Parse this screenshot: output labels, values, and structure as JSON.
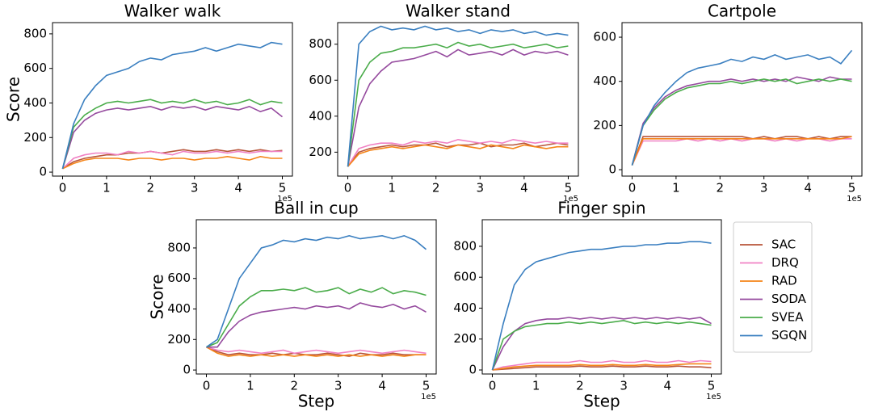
{
  "chart_data": [
    {
      "type": "line",
      "title": "Walker walk",
      "y_label": "Score",
      "x_offset_label": "1e5",
      "x": [
        0,
        0.25,
        0.5,
        0.75,
        1,
        1.25,
        1.5,
        1.75,
        2,
        2.25,
        2.5,
        2.75,
        3,
        3.25,
        3.5,
        3.75,
        4,
        4.25,
        4.5,
        4.75,
        5
      ],
      "xlim": [
        -0.23,
        5.23
      ],
      "xticks": [
        0,
        1,
        2,
        3,
        4,
        5
      ],
      "ylim": [
        -23,
        865
      ],
      "yticks": [
        0,
        200,
        400,
        600,
        800
      ],
      "series": [
        {
          "name": "SAC",
          "color": "#b8553a",
          "values": [
            20,
            60,
            80,
            90,
            100,
            100,
            110,
            110,
            120,
            110,
            120,
            130,
            120,
            120,
            130,
            120,
            130,
            120,
            130,
            120,
            125
          ]
        },
        {
          "name": "DRQ",
          "color": "#f081c4",
          "values": [
            20,
            80,
            100,
            110,
            110,
            100,
            120,
            110,
            120,
            110,
            100,
            120,
            110,
            110,
            120,
            110,
            120,
            110,
            120,
            120,
            120
          ]
        },
        {
          "name": "RAD",
          "color": "#f58518",
          "values": [
            20,
            50,
            70,
            80,
            80,
            80,
            70,
            80,
            80,
            70,
            80,
            80,
            70,
            80,
            80,
            90,
            80,
            70,
            90,
            80,
            80
          ]
        },
        {
          "name": "SODA",
          "color": "#954a9e",
          "values": [
            20,
            230,
            300,
            340,
            360,
            370,
            360,
            370,
            380,
            360,
            380,
            370,
            380,
            360,
            380,
            370,
            360,
            380,
            350,
            370,
            320
          ]
        },
        {
          "name": "SVEA",
          "color": "#4aac4a",
          "values": [
            20,
            260,
            330,
            370,
            400,
            410,
            400,
            410,
            420,
            400,
            410,
            400,
            420,
            400,
            410,
            390,
            400,
            420,
            390,
            410,
            400
          ]
        },
        {
          "name": "SGQN",
          "color": "#3a7fc0",
          "values": [
            20,
            280,
            420,
            500,
            560,
            580,
            600,
            640,
            660,
            650,
            680,
            690,
            700,
            720,
            700,
            720,
            740,
            730,
            720,
            750,
            740
          ]
        }
      ]
    },
    {
      "type": "line",
      "title": "Walker stand",
      "x_offset_label": "1e5",
      "x": [
        0,
        0.25,
        0.5,
        0.75,
        1,
        1.25,
        1.5,
        1.75,
        2,
        2.25,
        2.5,
        2.75,
        3,
        3.25,
        3.5,
        3.75,
        4,
        4.25,
        4.5,
        4.75,
        5
      ],
      "xlim": [
        -0.23,
        5.23
      ],
      "xticks": [
        0,
        1,
        2,
        3,
        4,
        5
      ],
      "ylim": [
        67,
        920
      ],
      "yticks": [
        200,
        400,
        600,
        800
      ],
      "series": [
        {
          "name": "SAC",
          "color": "#b8553a",
          "values": [
            120,
            200,
            220,
            230,
            240,
            230,
            240,
            240,
            250,
            230,
            240,
            240,
            250,
            230,
            240,
            240,
            250,
            230,
            240,
            250,
            240
          ]
        },
        {
          "name": "DRQ",
          "color": "#f081c4",
          "values": [
            120,
            220,
            240,
            250,
            250,
            240,
            260,
            250,
            260,
            250,
            270,
            260,
            250,
            260,
            250,
            270,
            260,
            250,
            260,
            250,
            250
          ]
        },
        {
          "name": "RAD",
          "color": "#f58518",
          "values": [
            120,
            190,
            210,
            220,
            230,
            220,
            230,
            240,
            230,
            220,
            240,
            230,
            220,
            240,
            230,
            220,
            240,
            230,
            220,
            230,
            230
          ]
        },
        {
          "name": "SODA",
          "color": "#954a9e",
          "values": [
            120,
            450,
            580,
            650,
            700,
            710,
            720,
            740,
            760,
            730,
            770,
            740,
            750,
            760,
            740,
            770,
            740,
            760,
            750,
            760,
            740
          ]
        },
        {
          "name": "SVEA",
          "color": "#4aac4a",
          "values": [
            120,
            600,
            700,
            750,
            760,
            780,
            780,
            790,
            800,
            780,
            810,
            790,
            800,
            780,
            790,
            800,
            780,
            790,
            800,
            780,
            790
          ]
        },
        {
          "name": "SGQN",
          "color": "#3a7fc0",
          "values": [
            120,
            800,
            870,
            900,
            880,
            890,
            880,
            900,
            880,
            890,
            870,
            880,
            860,
            880,
            870,
            880,
            860,
            870,
            850,
            860,
            850
          ]
        }
      ]
    },
    {
      "type": "line",
      "title": "Cartpole",
      "x_offset_label": "1e5",
      "x": [
        0,
        0.25,
        0.5,
        0.75,
        1,
        1.25,
        1.5,
        1.75,
        2,
        2.25,
        2.5,
        2.75,
        3,
        3.25,
        3.5,
        3.75,
        4,
        4.25,
        4.5,
        4.75,
        5
      ],
      "xlim": [
        -0.23,
        5.23
      ],
      "xticks": [
        0,
        1,
        2,
        3,
        4,
        5
      ],
      "ylim": [
        -29,
        666
      ],
      "yticks": [
        0,
        200,
        400,
        600
      ],
      "series": [
        {
          "name": "SAC",
          "color": "#b8553a",
          "values": [
            20,
            150,
            150,
            150,
            150,
            150,
            150,
            150,
            150,
            150,
            150,
            140,
            150,
            140,
            150,
            150,
            140,
            150,
            140,
            150,
            150
          ]
        },
        {
          "name": "DRQ",
          "color": "#f081c4",
          "values": [
            20,
            130,
            130,
            130,
            130,
            140,
            130,
            140,
            130,
            140,
            130,
            140,
            140,
            130,
            140,
            130,
            140,
            140,
            130,
            140,
            140
          ]
        },
        {
          "name": "RAD",
          "color": "#f58518",
          "values": [
            20,
            140,
            140,
            140,
            140,
            140,
            140,
            140,
            140,
            140,
            140,
            140,
            140,
            140,
            140,
            140,
            140,
            140,
            140,
            140,
            150
          ]
        },
        {
          "name": "SODA",
          "color": "#954a9e",
          "values": [
            20,
            210,
            280,
            330,
            360,
            380,
            390,
            400,
            400,
            410,
            400,
            410,
            400,
            410,
            400,
            420,
            410,
            400,
            420,
            410,
            410
          ]
        },
        {
          "name": "SVEA",
          "color": "#4aac4a",
          "values": [
            20,
            200,
            270,
            320,
            350,
            370,
            380,
            390,
            390,
            400,
            390,
            400,
            410,
            400,
            410,
            390,
            400,
            410,
            400,
            410,
            400
          ]
        },
        {
          "name": "SGQN",
          "color": "#3a7fc0",
          "values": [
            20,
            200,
            290,
            350,
            400,
            440,
            460,
            470,
            480,
            500,
            490,
            510,
            500,
            520,
            500,
            510,
            520,
            500,
            510,
            480,
            540
          ]
        }
      ]
    },
    {
      "type": "line",
      "title": "Ball in cup",
      "y_label": "Score",
      "x_label": "Step",
      "x_offset_label": "1e5",
      "x": [
        0,
        0.25,
        0.5,
        0.75,
        1,
        1.25,
        1.5,
        1.75,
        2,
        2.25,
        2.5,
        2.75,
        3,
        3.25,
        3.5,
        3.75,
        4,
        4.25,
        4.5,
        4.75,
        5
      ],
      "xlim": [
        -0.23,
        5.23
      ],
      "xticks": [
        0,
        1,
        2,
        3,
        4,
        5
      ],
      "ylim": [
        -26,
        985
      ],
      "yticks": [
        0,
        200,
        400,
        600,
        800
      ],
      "series": [
        {
          "name": "SAC",
          "color": "#b8553a",
          "values": [
            150,
            120,
            100,
            110,
            100,
            100,
            110,
            100,
            110,
            100,
            100,
            110,
            100,
            90,
            110,
            100,
            100,
            110,
            100,
            100,
            100
          ]
        },
        {
          "name": "DRQ",
          "color": "#f081c4",
          "values": [
            150,
            130,
            120,
            130,
            120,
            110,
            120,
            130,
            110,
            120,
            130,
            120,
            110,
            120,
            130,
            120,
            110,
            120,
            130,
            120,
            110
          ]
        },
        {
          "name": "RAD",
          "color": "#f58518",
          "values": [
            150,
            110,
            90,
            100,
            90,
            100,
            90,
            100,
            90,
            100,
            90,
            100,
            90,
            100,
            90,
            100,
            90,
            100,
            90,
            100,
            100
          ]
        },
        {
          "name": "SODA",
          "color": "#954a9e",
          "values": [
            150,
            150,
            250,
            320,
            360,
            380,
            390,
            400,
            410,
            400,
            420,
            410,
            420,
            400,
            440,
            420,
            410,
            430,
            400,
            420,
            380
          ]
        },
        {
          "name": "SVEA",
          "color": "#4aac4a",
          "values": [
            150,
            180,
            300,
            420,
            480,
            520,
            520,
            530,
            520,
            540,
            510,
            520,
            540,
            500,
            530,
            510,
            540,
            500,
            520,
            510,
            490
          ]
        },
        {
          "name": "SGQN",
          "color": "#3a7fc0",
          "values": [
            150,
            200,
            400,
            600,
            700,
            800,
            820,
            850,
            840,
            860,
            850,
            870,
            860,
            880,
            860,
            870,
            880,
            860,
            880,
            850,
            790
          ]
        }
      ]
    },
    {
      "type": "line",
      "title": "Finger spin",
      "x_label": "Step",
      "x_offset_label": "1e5",
      "x": [
        0,
        0.25,
        0.5,
        0.75,
        1,
        1.25,
        1.5,
        1.75,
        2,
        2.25,
        2.5,
        2.75,
        3,
        3.25,
        3.5,
        3.75,
        4,
        4.25,
        4.5,
        4.75,
        5
      ],
      "xlim": [
        -0.23,
        5.23
      ],
      "xticks": [
        0,
        1,
        2,
        3,
        4,
        5
      ],
      "ylim": [
        -26,
        972
      ],
      "yticks": [
        0,
        200,
        400,
        600,
        800
      ],
      "series": [
        {
          "name": "SAC",
          "color": "#b8553a",
          "values": [
            0,
            5,
            10,
            15,
            20,
            20,
            20,
            20,
            25,
            20,
            20,
            25,
            20,
            20,
            25,
            20,
            20,
            25,
            20,
            20,
            15
          ]
        },
        {
          "name": "DRQ",
          "color": "#f081c4",
          "values": [
            0,
            20,
            30,
            40,
            50,
            50,
            50,
            50,
            60,
            50,
            50,
            60,
            50,
            50,
            60,
            50,
            50,
            60,
            50,
            60,
            55
          ]
        },
        {
          "name": "RAD",
          "color": "#f58518",
          "values": [
            0,
            10,
            20,
            25,
            30,
            30,
            30,
            30,
            35,
            30,
            30,
            35,
            30,
            30,
            35,
            30,
            30,
            35,
            40,
            40,
            40
          ]
        },
        {
          "name": "SODA",
          "color": "#954a9e",
          "values": [
            0,
            150,
            250,
            300,
            320,
            330,
            330,
            340,
            330,
            340,
            330,
            340,
            330,
            340,
            330,
            340,
            330,
            340,
            330,
            340,
            300
          ]
        },
        {
          "name": "SVEA",
          "color": "#4aac4a",
          "values": [
            0,
            200,
            250,
            280,
            290,
            300,
            300,
            310,
            300,
            310,
            300,
            310,
            320,
            300,
            310,
            300,
            310,
            300,
            310,
            300,
            290
          ]
        },
        {
          "name": "SGQN",
          "color": "#3a7fc0",
          "values": [
            0,
            300,
            550,
            650,
            700,
            720,
            740,
            760,
            770,
            780,
            780,
            790,
            800,
            800,
            810,
            810,
            820,
            820,
            830,
            830,
            820
          ]
        }
      ]
    }
  ]
}
